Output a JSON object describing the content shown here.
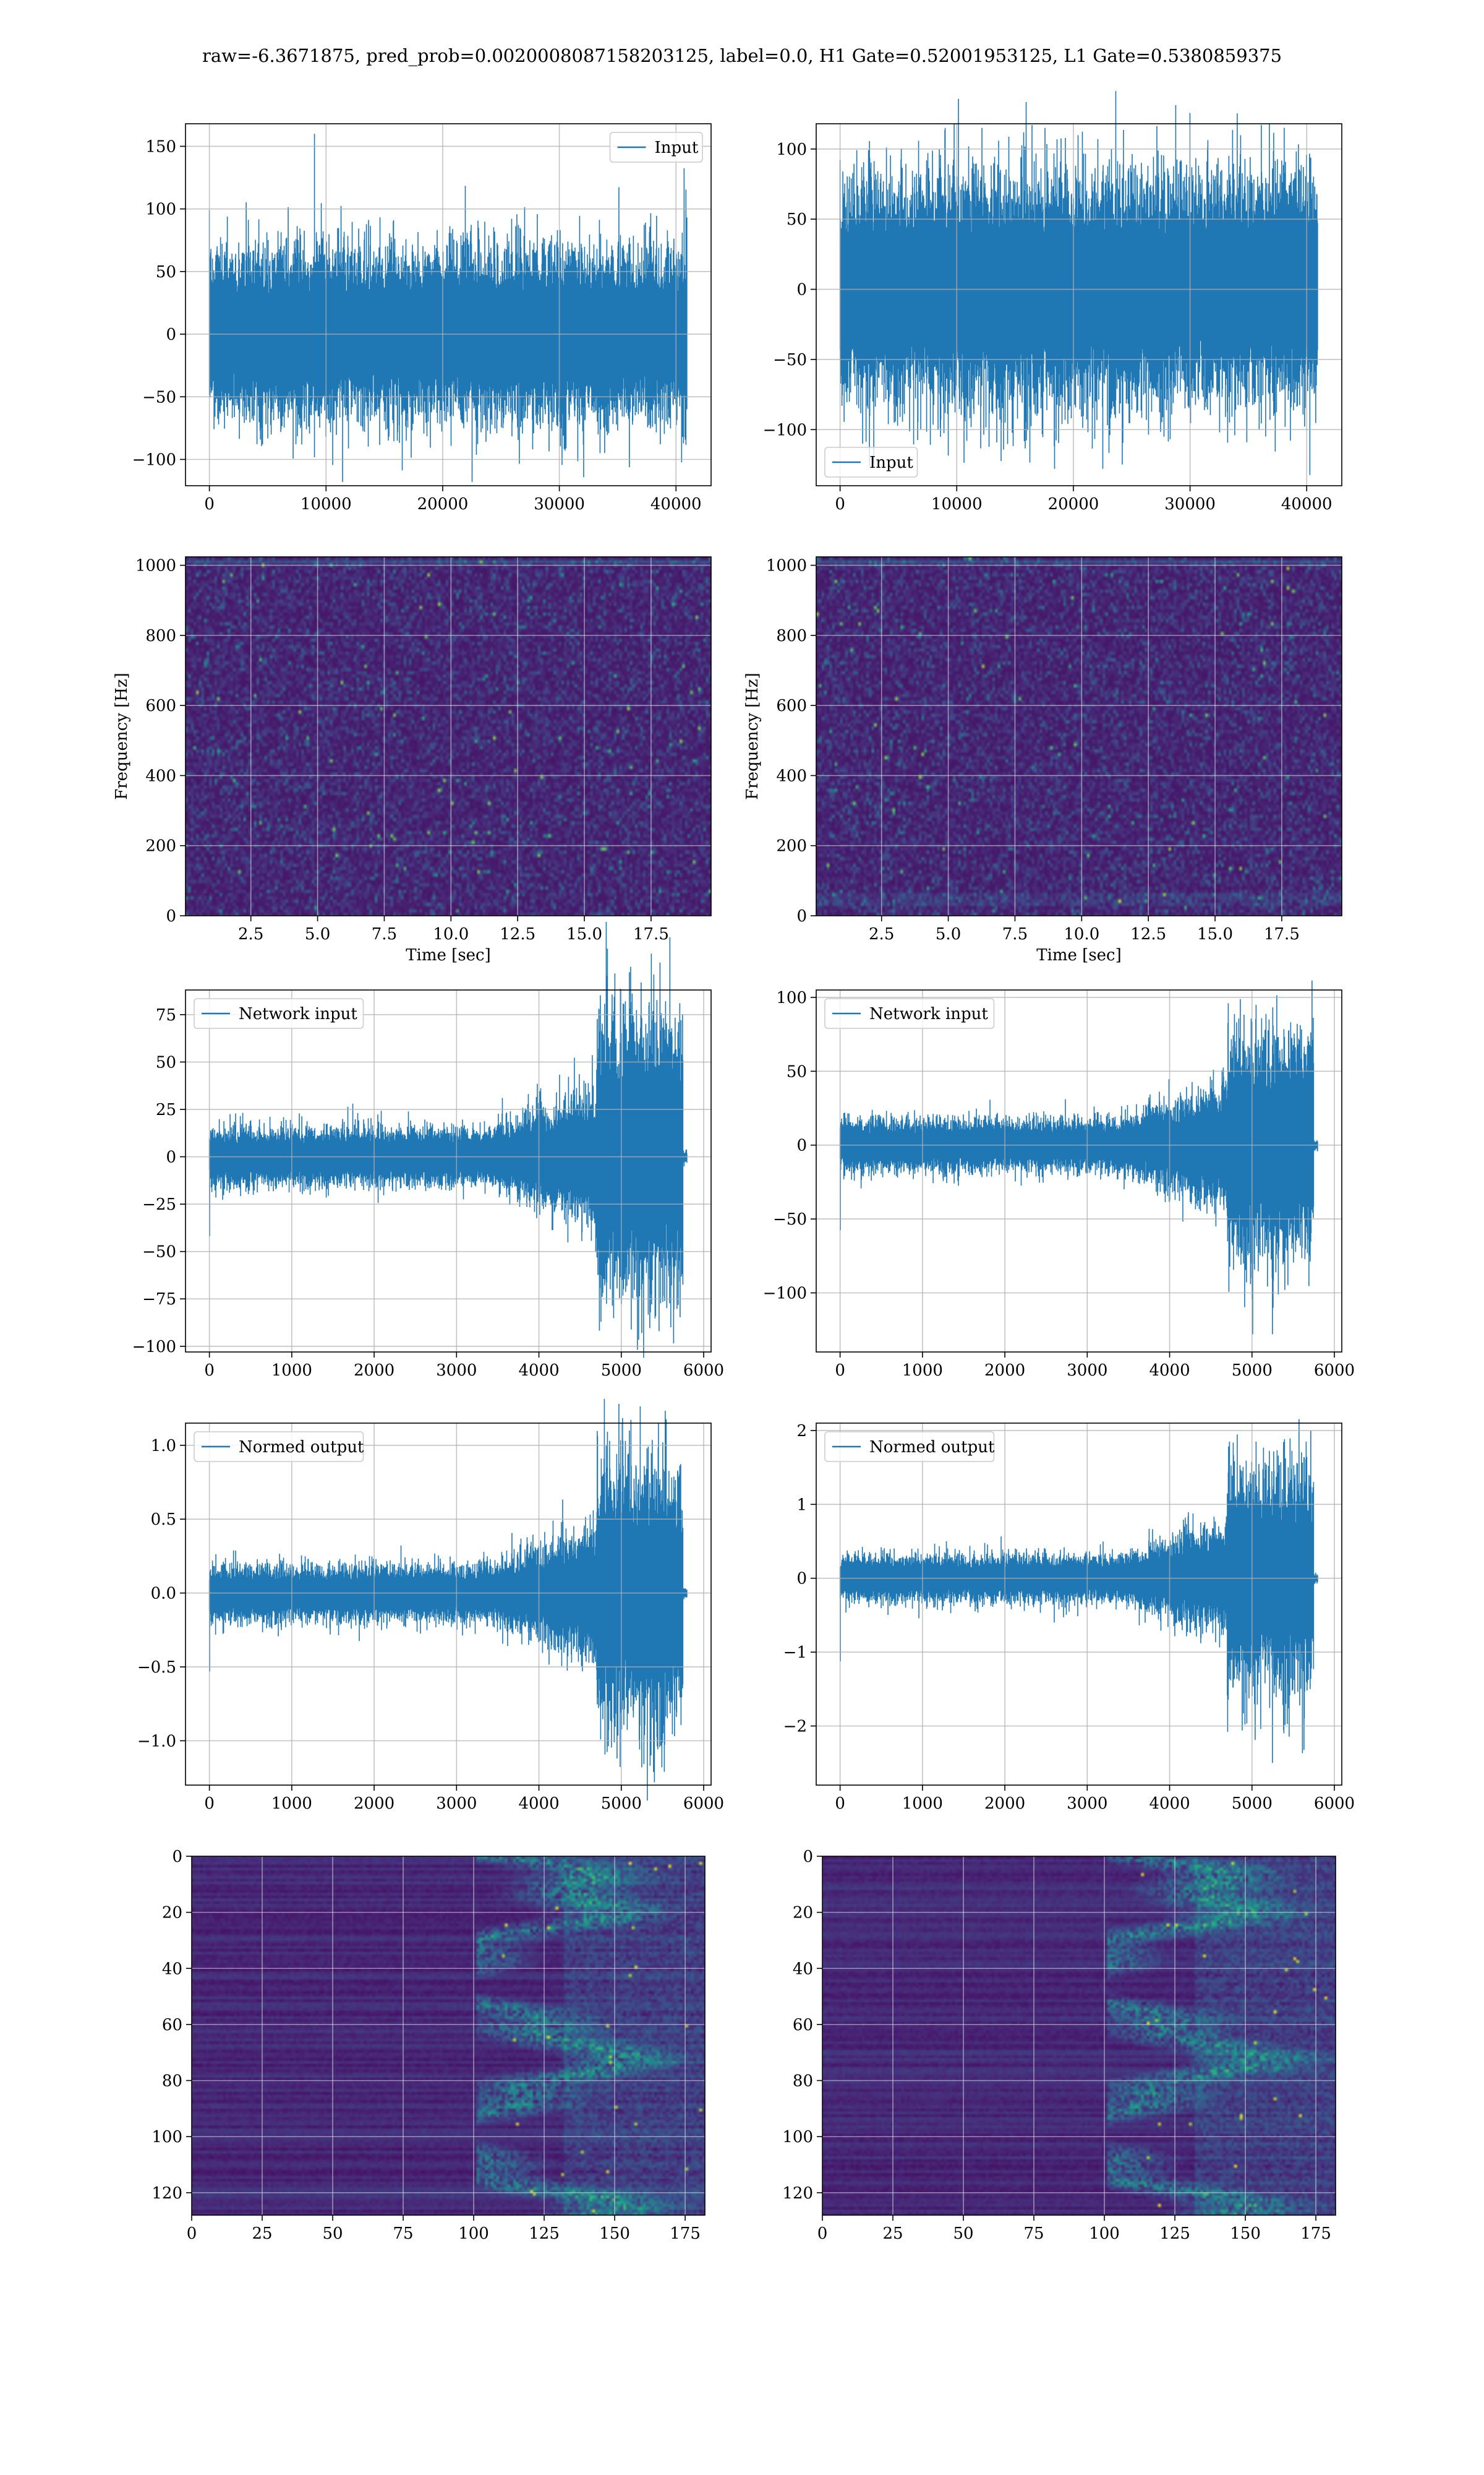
{
  "suptitle": "raw=-6.3671875, pred_prob=0.0020008087158203125, label=0.0, H1 Gate=0.52001953125, L1 Gate=0.5380859375",
  "colors": {
    "line": "#1f77b4",
    "viridis_low": "#440154",
    "viridis_mid": "#21918c",
    "viridis_high": "#fde725"
  },
  "chart_data": [
    {
      "id": "h1-input",
      "type": "line",
      "legend": "Input",
      "legend_loc": "upper-right",
      "xlim": [
        -2048,
        43008
      ],
      "ylim": [
        -121,
        168
      ],
      "xticks": [
        0,
        10000,
        20000,
        30000,
        40000
      ],
      "yticks": [
        -100,
        -50,
        0,
        50,
        100,
        150
      ],
      "xticklabels": [
        "0",
        "10000",
        "20000",
        "30000",
        "40000"
      ],
      "yticklabels": [
        "−100",
        "−50",
        "0",
        "50",
        "100",
        "150"
      ],
      "n": 40960,
      "envelope": {
        "typical": 55,
        "max": 160,
        "min": -118
      }
    },
    {
      "id": "l1-input",
      "type": "line",
      "legend": "Input",
      "legend_loc": "lower-left",
      "xlim": [
        -2048,
        43008
      ],
      "ylim": [
        -140,
        118
      ],
      "xticks": [
        0,
        10000,
        20000,
        30000,
        40000
      ],
      "yticks": [
        -100,
        -50,
        0,
        50,
        100
      ],
      "xticklabels": [
        "0",
        "10000",
        "20000",
        "30000",
        "40000"
      ],
      "yticklabels": [
        "−100",
        "−50",
        "0",
        "50",
        "100"
      ],
      "n": 40960,
      "envelope": {
        "typical": 65,
        "max": 115,
        "min": -128
      }
    },
    {
      "id": "h1-spectrogram",
      "type": "heatmap",
      "xlabel": "Time [sec]",
      "ylabel": "Frequency [Hz]",
      "xlim": [
        0.05,
        19.75
      ],
      "ylim": [
        0,
        1024
      ],
      "xticks": [
        2.5,
        5.0,
        7.5,
        10.0,
        12.5,
        15.0,
        17.5
      ],
      "yticks": [
        0,
        200,
        400,
        600,
        800,
        1000
      ],
      "xticklabels": [
        "2.5",
        "5.0",
        "7.5",
        "10.0",
        "12.5",
        "15.0",
        "17.5"
      ],
      "yticklabels": [
        "0",
        "200",
        "400",
        "600",
        "800",
        "1000"
      ]
    },
    {
      "id": "l1-spectrogram",
      "type": "heatmap",
      "xlabel": "Time [sec]",
      "ylabel": "Frequency [Hz]",
      "xlim": [
        0.05,
        19.75
      ],
      "ylim": [
        0,
        1024
      ],
      "xticks": [
        2.5,
        5.0,
        7.5,
        10.0,
        12.5,
        15.0,
        17.5
      ],
      "yticks": [
        0,
        200,
        400,
        600,
        800,
        1000
      ],
      "xticklabels": [
        "2.5",
        "5.0",
        "7.5",
        "10.0",
        "12.5",
        "15.0",
        "17.5"
      ],
      "yticklabels": [
        "0",
        "200",
        "400",
        "600",
        "800",
        "1000"
      ]
    },
    {
      "id": "h1-network-input",
      "type": "line",
      "legend": "Network input",
      "legend_loc": "upper-left",
      "xlim": [
        -290,
        6090
      ],
      "ylim": [
        -103,
        88
      ],
      "xticks": [
        0,
        1000,
        2000,
        3000,
        4000,
        5000,
        6000
      ],
      "yticks": [
        -100,
        -75,
        -50,
        -25,
        0,
        25,
        50,
        75
      ],
      "xticklabels": [
        "0",
        "1000",
        "2000",
        "3000",
        "4000",
        "5000",
        "6000"
      ],
      "yticklabels": [
        "−100",
        "−75",
        "−50",
        "−25",
        "0",
        "25",
        "50",
        "75"
      ],
      "n": 5800,
      "envelope": {
        "early": 12,
        "burst_start": 4700,
        "burst_end": 5750,
        "burst": 60,
        "max": 82,
        "min": -93
      }
    },
    {
      "id": "l1-network-input",
      "type": "line",
      "legend": "Network input",
      "legend_loc": "upper-left",
      "xlim": [
        -290,
        6090
      ],
      "ylim": [
        -140,
        105
      ],
      "xticks": [
        0,
        1000,
        2000,
        3000,
        4000,
        5000,
        6000
      ],
      "yticks": [
        -100,
        -50,
        0,
        50,
        100
      ],
      "xticklabels": [
        "0",
        "1000",
        "2000",
        "3000",
        "4000",
        "5000",
        "6000"
      ],
      "yticklabels": [
        "−100",
        "−50",
        "0",
        "50",
        "100"
      ],
      "n": 5800,
      "envelope": {
        "early": 14,
        "burst_start": 4700,
        "burst_end": 5750,
        "burst": 60,
        "max": 95,
        "min": -128
      }
    },
    {
      "id": "h1-normed-output",
      "type": "line",
      "legend": "Normed output",
      "legend_loc": "upper-left",
      "xlim": [
        -290,
        6090
      ],
      "ylim": [
        -1.3,
        1.15
      ],
      "xticks": [
        0,
        1000,
        2000,
        3000,
        4000,
        5000,
        6000
      ],
      "yticks": [
        -1.0,
        -0.5,
        0.0,
        0.5,
        1.0
      ],
      "xticklabels": [
        "0",
        "1000",
        "2000",
        "3000",
        "4000",
        "5000",
        "6000"
      ],
      "yticklabels": [
        "−1.0",
        "−0.5",
        "0.0",
        "0.5",
        "1.0"
      ],
      "n": 5800,
      "envelope": {
        "early": 0.15,
        "burst_start": 4700,
        "burst_end": 5750,
        "burst": 0.7,
        "max": 1.03,
        "min": -1.18
      }
    },
    {
      "id": "l1-normed-output",
      "type": "line",
      "legend": "Normed output",
      "legend_loc": "upper-left",
      "xlim": [
        -290,
        6090
      ],
      "ylim": [
        -2.8,
        2.1
      ],
      "xticks": [
        0,
        1000,
        2000,
        3000,
        4000,
        5000,
        6000
      ],
      "yticks": [
        -2,
        -1,
        0,
        1,
        2
      ],
      "xticklabels": [
        "0",
        "1000",
        "2000",
        "3000",
        "4000",
        "5000",
        "6000"
      ],
      "yticklabels": [
        "−2",
        "−1",
        "0",
        "1",
        "2"
      ],
      "n": 5800,
      "envelope": {
        "early": 0.25,
        "burst_start": 4700,
        "burst_end": 5750,
        "burst": 1.2,
        "max": 1.85,
        "min": -2.5
      }
    },
    {
      "id": "h1-qtransform",
      "type": "heatmap",
      "xlim": [
        0,
        182
      ],
      "ylim": [
        128,
        0
      ],
      "xticks": [
        0,
        25,
        50,
        75,
        100,
        125,
        150,
        175
      ],
      "yticks": [
        0,
        20,
        40,
        60,
        80,
        100,
        120
      ],
      "xticklabels": [
        "0",
        "25",
        "50",
        "75",
        "100",
        "125",
        "150",
        "175"
      ],
      "yticklabels": [
        "0",
        "20",
        "40",
        "60",
        "80",
        "100",
        "120"
      ],
      "rows": 128,
      "cols": 182
    },
    {
      "id": "l1-qtransform",
      "type": "heatmap",
      "xlim": [
        0,
        182
      ],
      "ylim": [
        128,
        0
      ],
      "xticks": [
        0,
        25,
        50,
        75,
        100,
        125,
        150,
        175
      ],
      "yticks": [
        0,
        20,
        40,
        60,
        80,
        100,
        120
      ],
      "xticklabels": [
        "0",
        "25",
        "50",
        "75",
        "100",
        "125",
        "150",
        "175"
      ],
      "yticklabels": [
        "0",
        "20",
        "40",
        "60",
        "80",
        "100",
        "120"
      ],
      "rows": 128,
      "cols": 182
    }
  ]
}
